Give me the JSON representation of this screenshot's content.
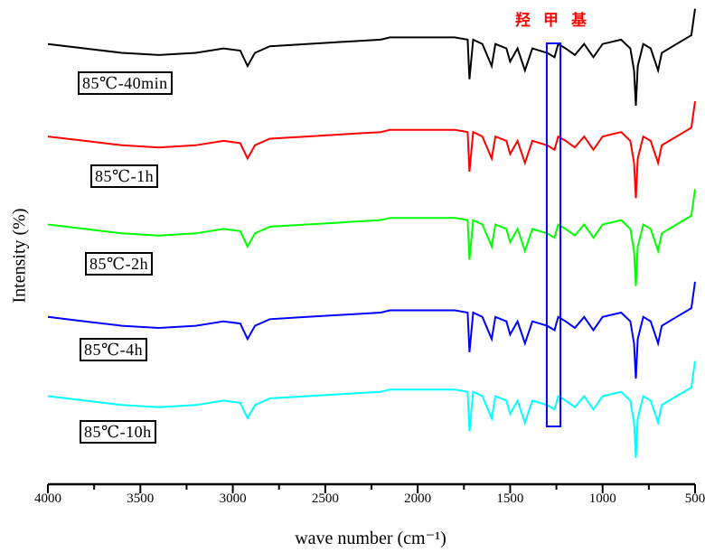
{
  "chart_data": {
    "type": "line",
    "title": "",
    "xlabel": "wave number (cm⁻¹)",
    "ylabel": "Intensity (%)",
    "xlim": [
      4000,
      500
    ],
    "ylim": [
      0,
      110
    ],
    "xticks": [
      "4000",
      "3500",
      "3000",
      "2500",
      "2000",
      "1500",
      "1000",
      "500"
    ],
    "annotation": {
      "text": "羟甲基",
      "color": "#ff0000",
      "band_cm-1": [
        1302,
        1228
      ],
      "band_color": "#0000ff"
    },
    "x": [
      4000,
      3800,
      3600,
      3400,
      3200,
      3050,
      2960,
      2920,
      2880,
      2800,
      2600,
      2400,
      2200,
      2150,
      2000,
      1800,
      1730,
      1720,
      1700,
      1650,
      1600,
      1580,
      1520,
      1500,
      1460,
      1420,
      1380,
      1300,
      1260,
      1240,
      1200,
      1150,
      1100,
      1050,
      1000,
      950,
      900,
      850,
      830,
      820,
      810,
      780,
      740,
      700,
      680,
      600,
      560,
      520,
      500
    ],
    "series": [
      {
        "name": "85℃-40min",
        "color": "#000000",
        "values": [
          100,
          99,
          98,
          97.5,
          98,
          99,
          98.5,
          95,
          98,
          99.5,
          100,
          100.5,
          101,
          101.5,
          101.5,
          101.5,
          101,
          92,
          101,
          100,
          95,
          100,
          99,
          96,
          99,
          94,
          99,
          98,
          97,
          100,
          99,
          97.5,
          100,
          97,
          100,
          100.5,
          101,
          99,
          94,
          86,
          95,
          100,
          99,
          94,
          98,
          100,
          101,
          102,
          108
        ]
      },
      {
        "name": "85℃-1h",
        "color": "#ff0000",
        "values": [
          79,
          78,
          77,
          76.5,
          77,
          78,
          77.5,
          74,
          77,
          78.5,
          79,
          79.5,
          80,
          80.5,
          80.5,
          80.5,
          80,
          71,
          80,
          79,
          74,
          79,
          78,
          75,
          78,
          73,
          78,
          77,
          76,
          79,
          78,
          76.5,
          79,
          76,
          79,
          79.5,
          80,
          78,
          73,
          65,
          74,
          79,
          78,
          73,
          77,
          79,
          80,
          81,
          87
        ]
      },
      {
        "name": "85℃-2h",
        "color": "#00ff00",
        "values": [
          59,
          58,
          57,
          56.5,
          57,
          58,
          57.5,
          54,
          57,
          58.5,
          59,
          59.5,
          60,
          60.5,
          60.5,
          60.5,
          60,
          51,
          60,
          59,
          54,
          59,
          58,
          55,
          58,
          53,
          58,
          57,
          56,
          59,
          58,
          56.5,
          59,
          56,
          59,
          59.5,
          60,
          58,
          53,
          45,
          54,
          59,
          58,
          53,
          57,
          59,
          60,
          61,
          67
        ]
      },
      {
        "name": "85℃-4h",
        "color": "#0000ff",
        "values": [
          38,
          37,
          36,
          35.5,
          36,
          37,
          36.5,
          33,
          36,
          37.5,
          38,
          38.5,
          39,
          39.5,
          39.5,
          39.5,
          39,
          30,
          39,
          38,
          33,
          38,
          37,
          34,
          37,
          32,
          37,
          36,
          35,
          38,
          37,
          35.5,
          38,
          35,
          38,
          38.5,
          39,
          37,
          32,
          24,
          33,
          38,
          37,
          32,
          36,
          38,
          39,
          40,
          46
        ]
      },
      {
        "name": "85℃-10h",
        "color": "#00ffff",
        "values": [
          20,
          19,
          18,
          17.5,
          18,
          19,
          18.5,
          15,
          18,
          19.5,
          20,
          20.5,
          21,
          21.5,
          21.5,
          21.5,
          21,
          12,
          21,
          20,
          15,
          20,
          19,
          16,
          19,
          14,
          19,
          18,
          17,
          20,
          19,
          17.5,
          20,
          17,
          20,
          20.5,
          21,
          19,
          14,
          6,
          15,
          20,
          19,
          14,
          18,
          20,
          21,
          22,
          28
        ]
      }
    ]
  }
}
